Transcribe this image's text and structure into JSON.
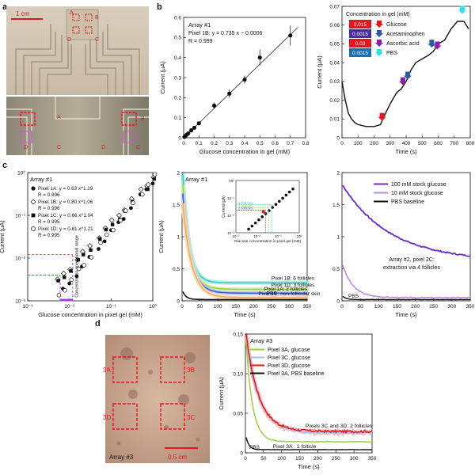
{
  "panel_letters": {
    "a": "a",
    "b": "b",
    "c": "c",
    "d": "d"
  },
  "photo_a": {
    "scale_bar": "1 cm",
    "top_labels": [
      "D",
      "A",
      "B",
      "C"
    ],
    "bottom_labels": [
      "A",
      "B",
      "D",
      "C",
      "D",
      "C"
    ]
  },
  "photo_d": {
    "pixels": [
      "3A",
      "3B",
      "3D",
      "3C"
    ],
    "array": "Array #3",
    "scale_bar": "0.5 cm"
  },
  "colors": {
    "glucose": "#e8141e",
    "acetaminophen": "#2c5ba6",
    "ascorbic": "#8a1fb0",
    "pbs": "#33e0e8",
    "violet": "#6a2bc6",
    "lavender": "#b58ce8",
    "teal": "#2fd3c5",
    "green": "#9bd33a",
    "blue": "#3a5fd6",
    "orange": "#f2b05a"
  },
  "chart_data": [
    {
      "id": "b1",
      "type": "scatter",
      "title": "Array #1",
      "fit_text": "Pixel 1B: y = 0.735 x − 0.0006",
      "r_text": "R = 0.999",
      "xlabel": "Glucose concentration in gel (mM)",
      "ylabel": "Current (μA)",
      "xlim": [
        0,
        0.8
      ],
      "ylim": [
        0,
        0.6
      ],
      "xticks": [
        "0",
        "0.1",
        "0.2",
        "0.3",
        "0.4",
        "0.5",
        "0.6",
        "0.7",
        "0.8"
      ],
      "yticks": [
        "0",
        "0.1",
        "0.2",
        "0.3",
        "0.4",
        "0.5",
        "0.6"
      ],
      "x": [
        0.005,
        0.01,
        0.02,
        0.03,
        0.05,
        0.07,
        0.1,
        0.2,
        0.3,
        0.4,
        0.5,
        0.7
      ],
      "y": [
        0.004,
        0.008,
        0.015,
        0.022,
        0.037,
        0.05,
        0.072,
        0.16,
        0.22,
        0.29,
        0.4,
        0.51
      ],
      "err": [
        0.003,
        0.003,
        0.004,
        0.004,
        0.005,
        0.006,
        0.008,
        0.015,
        0.02,
        0.02,
        0.04,
        0.05
      ]
    },
    {
      "id": "b2",
      "type": "line",
      "legend_title": "Concentration in gel (mM)",
      "legend": [
        {
          "value": "0.015",
          "name": "Glucose"
        },
        {
          "value": "0.0015",
          "name": "Acetaminophen"
        },
        {
          "value": "0.03",
          "name": "Ascorbic acid"
        },
        {
          "value": "0.0015",
          "name": "PBS"
        }
      ],
      "xlabel": "Time (s)",
      "ylabel": "Current (μA)",
      "xlim": [
        0,
        800
      ],
      "ylim": [
        0,
        0.07
      ],
      "xticks": [
        "0",
        "100",
        "200",
        "300",
        "400",
        "500",
        "600",
        "700",
        "800"
      ],
      "yticks": [
        "0",
        "0.01",
        "0.02",
        "0.03",
        "0.04",
        "0.05",
        "0.06",
        "0.07"
      ],
      "x": [
        0,
        10,
        20,
        40,
        60,
        80,
        100,
        150,
        200,
        240,
        260,
        300,
        340,
        370,
        400,
        430,
        460,
        500,
        540,
        570,
        600,
        640,
        680,
        720,
        760,
        790
      ],
      "y": [
        0.03,
        0.025,
        0.02,
        0.013,
        0.01,
        0.008,
        0.007,
        0.006,
        0.006,
        0.007,
        0.011,
        0.018,
        0.024,
        0.026,
        0.03,
        0.036,
        0.04,
        0.042,
        0.044,
        0.046,
        0.05,
        0.052,
        0.058,
        0.062,
        0.062,
        0.058
      ],
      "arrows": [
        {
          "x": 250,
          "y": 0.009,
          "s": "glucose"
        },
        {
          "x": 380,
          "y": 0.028,
          "s": "ascorbic"
        },
        {
          "x": 410,
          "y": 0.031,
          "s": "acetaminophen"
        },
        {
          "x": 560,
          "y": 0.048,
          "s": "acetaminophen"
        },
        {
          "x": 595,
          "y": 0.047,
          "s": "ascorbic"
        },
        {
          "x": 750,
          "y": 0.066,
          "s": "pbs"
        }
      ]
    },
    {
      "id": "c1",
      "type": "scatter",
      "title": "Array #1",
      "legend": [
        {
          "name": "Pixel 1A: y = 0.63 x^1.19",
          "r": "R = 0.996",
          "marker": "filled-circle"
        },
        {
          "name": "Pixel 1B: y = 0.80 x^1.06",
          "r": "R = 0.996",
          "marker": "open-diamond"
        },
        {
          "name": "Pixel 1C: y = 0.66 x^1.04",
          "r": "R = 0.995",
          "marker": "filled-square"
        },
        {
          "name": "Pixel 1D: y = 0.81 x^1.21",
          "r": "R = 0.995",
          "marker": "open-circle"
        }
      ],
      "annotation": "Concentration operational range",
      "xlabel": "Glucose concentration in pixel gel (mM)",
      "ylabel": "Current (μA)",
      "xlim": [
        0.001,
        1
      ],
      "ylim": [
        0.001,
        1
      ],
      "xticks": [
        "10⁻³",
        "10⁻²",
        "10⁻¹",
        "10⁰"
      ],
      "yticks": [
        "10⁻³",
        "10⁻²",
        "10⁻¹",
        "10⁰"
      ]
    },
    {
      "id": "c2",
      "type": "line",
      "title": "Array #1",
      "series": [
        {
          "name": "Pixel 1B: 6 follicles",
          "color": "teal",
          "end": 0.28
        },
        {
          "name": "Pixel 1D: 3 follicles",
          "color": "green",
          "end": 0.18
        },
        {
          "name": "Pixel 1A: 2 follicles",
          "color": "blue",
          "end": 0.12
        },
        {
          "name": "Pixel 1C: non-follicular skin",
          "color": "orange",
          "end": 0.05
        },
        {
          "name": "PBS",
          "color": "black",
          "end": 0.02
        }
      ],
      "inset_xlabel": "Glucose concentration in pixel gel (mM)",
      "inset_ylabel": "Current (μA)",
      "inset_labels": [
        "6 follicles",
        "3 follicles",
        "2 follicles"
      ],
      "xlabel": "Time (s)",
      "ylabel": "Current (μA)",
      "xlim": [
        0,
        350
      ],
      "ylim": [
        0,
        2
      ],
      "xticks": [
        "0",
        "50",
        "100",
        "150",
        "200",
        "250",
        "300",
        "350"
      ],
      "yticks": [
        "0",
        "0.5",
        "1",
        "1.5",
        "2"
      ]
    },
    {
      "id": "c3",
      "type": "line",
      "title": "Array #2",
      "series": [
        {
          "name": "100 mM stock glucose",
          "color": "violet"
        },
        {
          "name": "10 mM stock glucose",
          "color": "lavender"
        },
        {
          "name": "PBS baseline",
          "color": "black"
        }
      ],
      "annotation": "Array #2, pixel 2C: extraction via 4 follicles",
      "pbs_label": "PBS",
      "xlabel": "Time (s)",
      "xlim": [
        0,
        350
      ],
      "ylim": [
        0,
        2
      ],
      "xticks": [
        "0",
        "50",
        "100",
        "150",
        "200",
        "250",
        "300",
        "350"
      ],
      "yticks": [
        "0",
        "0.5",
        "1",
        "1.5",
        "2"
      ]
    },
    {
      "id": "d2",
      "type": "line",
      "title": "Array #3",
      "series": [
        {
          "name": "Pixel 3A, glucose",
          "color": "green"
        },
        {
          "name": "Pixel 3C, glucose",
          "color": "lightblue"
        },
        {
          "name": "Pixel 3D, glucose",
          "color": "red"
        },
        {
          "name": "Pixel 3A, PBS baseline",
          "color": "black"
        }
      ],
      "annotations": [
        "Pixels 3C and 3D: 2 follicles",
        "Pixel 3A : 1 follicle",
        "PBS"
      ],
      "xlabel": "Time (s)",
      "ylabel": "Current (μA)",
      "xlim": [
        0,
        350
      ],
      "ylim": [
        0,
        0.15
      ],
      "xticks": [
        "0",
        "50",
        "100",
        "150",
        "200",
        "250",
        "300",
        "350"
      ],
      "yticks": [
        "0",
        "0.05",
        "0.10",
        "0.15"
      ]
    }
  ]
}
